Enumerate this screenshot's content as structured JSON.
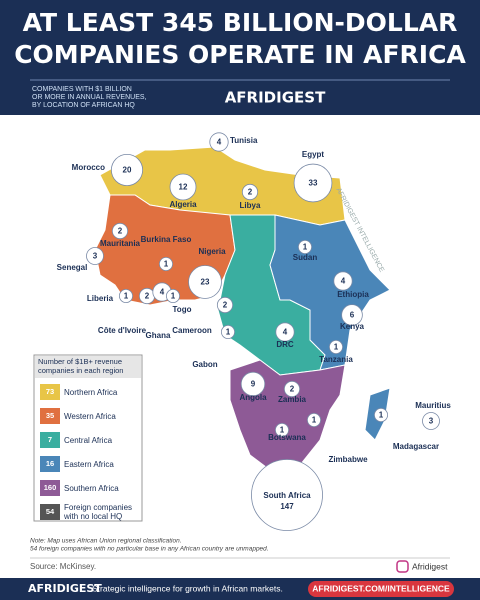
{
  "header": {
    "title_lines": [
      "AT LEAST 345 BILLION-DOLLAR",
      "COMPANIES OPERATE IN AFRICA"
    ],
    "subtitle_lines": [
      "COMPANIES WITH $1 BILLION",
      "OR MORE IN ANNUAL REVENUES,",
      "BY LOCATION OF AFRICAN HQ"
    ],
    "brand": "AFRIDIGEST"
  },
  "watermark": "AFRIDIGEST INTELLIGENCE",
  "countries": [
    {
      "name": "Morocco",
      "count": 20
    },
    {
      "name": "Tunisia",
      "count": 4
    },
    {
      "name": "Egypt",
      "count": 33
    },
    {
      "name": "Algeria",
      "count": 12
    },
    {
      "name": "Libya",
      "count": 2
    },
    {
      "name": "Mauritania",
      "count": 2
    },
    {
      "name": "Senegal",
      "count": 3
    },
    {
      "name": "Burkina Faso",
      "count": 1
    },
    {
      "name": "Nigeria",
      "count": 23
    },
    {
      "name": "Liberia",
      "count": 1
    },
    {
      "name": "Côte d'Ivoire",
      "count": 2
    },
    {
      "name": "Ghana",
      "count": 4
    },
    {
      "name": "Togo",
      "count": 1
    },
    {
      "name": "Cameroon",
      "count": 2
    },
    {
      "name": "Gabon",
      "count": 1
    },
    {
      "name": "Sudan",
      "count": 1
    },
    {
      "name": "Ethiopia",
      "count": 4
    },
    {
      "name": "Kenya",
      "count": 6
    },
    {
      "name": "DRC",
      "count": 4
    },
    {
      "name": "Tanzania",
      "count": 1
    },
    {
      "name": "Angola",
      "count": 9
    },
    {
      "name": "Zambia",
      "count": 2
    },
    {
      "name": "Botswana",
      "count": 1
    },
    {
      "name": "Zimbabwe",
      "count": 1
    },
    {
      "name": "South Africa",
      "count": 147
    },
    {
      "name": "Mauritius",
      "count": 3
    },
    {
      "name": "Madagascar",
      "count": 1
    }
  ],
  "legend": {
    "title": "Number of $1B+ revenue companies in each region",
    "items": [
      {
        "count": 73,
        "label": "Northern Africa",
        "color": "#e8c547"
      },
      {
        "count": 35,
        "label": "Western Africa",
        "color": "#e07040"
      },
      {
        "count": 7,
        "label": "Central Africa",
        "color": "#3aaea0"
      },
      {
        "count": 16,
        "label": "Eastern Africa",
        "color": "#4a86b8"
      },
      {
        "count": 160,
        "label": "Southern Africa",
        "color": "#8e5a96"
      },
      {
        "count": 54,
        "label": "Foreign companies with no local HQ",
        "color": "#555555"
      }
    ]
  },
  "notes": [
    "Note: Map uses African Union regional classification.",
    "54 foreign companies with no particular base in any African country are unmapped."
  ],
  "source": "Source: McKinsey.",
  "social": "Afridigest",
  "footer": {
    "brand": "AFRIDIGEST",
    "tagline": "Strategic intelligence for growth in African markets.",
    "url": "AFRIDIGEST.COM/INTELLIGENCE"
  }
}
